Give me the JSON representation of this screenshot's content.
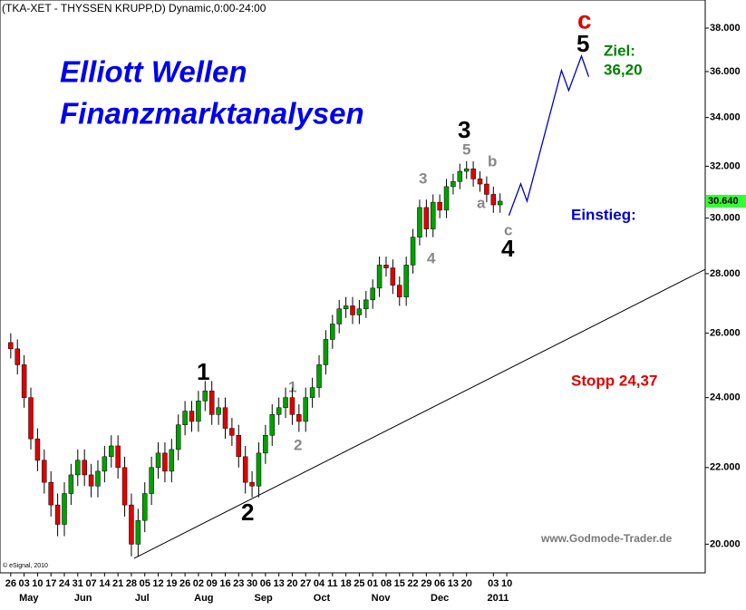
{
  "chart_data": {
    "type": "candlestick",
    "title": "(TKA-XET - THYSSEN KRUPP,D) Dynamic,0:00-24:00",
    "log_scale": true,
    "up_color": "#00a000",
    "down_color": "#e00000",
    "x": [
      0,
      0.5,
      1,
      1.5,
      2,
      2.5,
      3,
      3.5,
      4,
      4.5,
      5,
      5.5,
      6,
      6.5,
      7,
      7.5,
      8,
      8.5,
      9,
      9.5,
      10,
      10.5,
      11,
      11.5,
      12,
      12.5,
      13,
      13.5,
      14,
      14.5,
      15,
      15.5,
      16,
      16.5,
      17,
      17.5,
      18,
      18.5,
      19,
      19.5,
      20,
      20.5,
      21,
      21.5,
      22,
      22.5,
      23,
      23.5,
      24,
      24.5,
      25,
      25.5,
      26,
      26.5,
      27,
      27.5,
      28,
      28.5,
      29,
      29.5,
      30,
      30.5,
      31,
      31.5,
      32,
      32.5,
      33,
      33.5,
      34,
      34.5,
      35,
      35.5,
      36,
      36.5
    ],
    "open": [
      25.7,
      25.5,
      25.0,
      24.0,
      22.8,
      22.2,
      21.6,
      21.0,
      20.5,
      21.3,
      21.8,
      22.2,
      21.8,
      21.5,
      21.9,
      22.3,
      22.6,
      22.0,
      21.0,
      20.0,
      20.6,
      21.3,
      22.0,
      22.4,
      21.9,
      22.5,
      23.2,
      23.6,
      23.3,
      23.9,
      24.2,
      23.5,
      23.7,
      23.1,
      22.9,
      22.3,
      21.6,
      21.5,
      22.4,
      22.9,
      23.5,
      23.7,
      24.0,
      23.5,
      23.3,
      24.0,
      24.3,
      25.0,
      25.8,
      26.3,
      26.8,
      26.9,
      26.6,
      26.8,
      27.1,
      27.5,
      28.3,
      28.2,
      27.6,
      27.2,
      28.3,
      29.3,
      30.4,
      29.6,
      30.6,
      30.3,
      31.2,
      31.4,
      31.8,
      31.9,
      31.5,
      31.3,
      30.9,
      30.5
    ],
    "high": [
      26.0,
      25.8,
      25.3,
      24.3,
      23.1,
      22.5,
      21.9,
      21.3,
      21.6,
      22.1,
      22.5,
      22.5,
      22.1,
      22.2,
      22.6,
      22.9,
      22.9,
      22.3,
      21.3,
      20.9,
      21.6,
      22.3,
      22.7,
      22.7,
      22.8,
      23.5,
      23.9,
      23.9,
      24.2,
      24.5,
      24.5,
      24.0,
      24.0,
      23.4,
      23.2,
      22.6,
      21.9,
      22.7,
      23.2,
      23.8,
      24.0,
      24.3,
      24.3,
      23.8,
      24.3,
      24.6,
      25.3,
      26.1,
      26.6,
      27.1,
      27.2,
      27.2,
      27.1,
      27.4,
      27.8,
      28.6,
      28.6,
      28.5,
      27.9,
      28.6,
      29.6,
      30.7,
      30.7,
      30.9,
      30.9,
      31.5,
      31.7,
      32.1,
      32.2,
      32.2,
      31.8,
      31.6,
      31.2,
      30.94
    ],
    "low": [
      25.2,
      24.7,
      23.7,
      22.5,
      21.9,
      21.3,
      20.7,
      20.2,
      20.2,
      21.0,
      21.5,
      21.5,
      21.2,
      21.2,
      21.6,
      22.0,
      21.7,
      20.7,
      19.7,
      19.7,
      20.3,
      21.0,
      21.7,
      21.6,
      21.6,
      22.2,
      22.9,
      23.0,
      23.0,
      23.6,
      23.2,
      23.2,
      22.8,
      22.6,
      22.0,
      21.3,
      21.2,
      21.2,
      22.1,
      22.6,
      23.2,
      23.4,
      23.2,
      23.0,
      23.0,
      23.7,
      24.0,
      24.7,
      25.5,
      26.0,
      26.5,
      26.3,
      26.3,
      26.5,
      26.8,
      27.2,
      27.9,
      27.3,
      26.9,
      26.9,
      28.0,
      29.0,
      29.3,
      29.3,
      30.0,
      30.0,
      30.9,
      31.1,
      31.5,
      31.2,
      31.0,
      30.6,
      30.2,
      30.2
    ],
    "close": [
      25.5,
      25.0,
      24.0,
      22.8,
      22.2,
      21.6,
      21.0,
      20.5,
      21.3,
      21.8,
      22.2,
      21.8,
      21.5,
      21.9,
      22.3,
      22.6,
      22.0,
      21.0,
      20.0,
      20.6,
      21.3,
      22.0,
      22.4,
      21.9,
      22.5,
      23.2,
      23.6,
      23.3,
      23.9,
      24.2,
      23.5,
      23.7,
      23.1,
      22.9,
      22.3,
      21.6,
      21.5,
      22.4,
      22.9,
      23.5,
      23.7,
      24.0,
      23.5,
      23.3,
      24.0,
      24.3,
      25.0,
      25.8,
      26.3,
      26.8,
      26.9,
      26.6,
      26.8,
      27.1,
      27.5,
      28.3,
      28.2,
      27.6,
      27.2,
      28.3,
      29.3,
      30.4,
      29.6,
      30.6,
      30.3,
      31.2,
      31.4,
      31.8,
      31.9,
      31.5,
      31.3,
      30.9,
      30.5,
      30.64
    ],
    "trendline": {
      "color": "#000000",
      "x": [
        9.2,
        51.8
      ],
      "y": [
        19.65,
        28.15
      ]
    },
    "projection": {
      "color": "#0000cc",
      "x": [
        37.16,
        38.04,
        38.51,
        41.08,
        41.62,
        42.57,
        43.11
      ],
      "y": [
        30.1,
        31.31,
        30.64,
        36.05,
        35.16,
        36.7,
        35.77
      ]
    },
    "last_price": {
      "value": 30.64,
      "label": "30.640"
    },
    "xlim": [
      -0.8,
      51.8
    ],
    "ylim": [
      19.3,
      39.35
    ],
    "yticks": [
      {
        "value": 20,
        "label": "20.000"
      },
      {
        "value": 22,
        "label": "22.000"
      },
      {
        "value": 24,
        "label": "24.000"
      },
      {
        "value": 26,
        "label": "26.000"
      },
      {
        "value": 28,
        "label": "28.000"
      },
      {
        "value": 30,
        "label": "30.000"
      },
      {
        "value": 32,
        "label": "32.000"
      },
      {
        "value": 34,
        "label": "34.000"
      },
      {
        "value": 36,
        "label": "36.000"
      },
      {
        "value": 38,
        "label": "38.000"
      }
    ],
    "xticks": [
      {
        "value": 0,
        "label": "26"
      },
      {
        "value": 1,
        "label": "03"
      },
      {
        "value": 2,
        "label": "10"
      },
      {
        "value": 3,
        "label": "17"
      },
      {
        "value": 4,
        "label": "24"
      },
      {
        "value": 5,
        "label": "31"
      },
      {
        "value": 6,
        "label": "07"
      },
      {
        "value": 7,
        "label": "14"
      },
      {
        "value": 8,
        "label": "21"
      },
      {
        "value": 9,
        "label": "28"
      },
      {
        "value": 10,
        "label": "05"
      },
      {
        "value": 11,
        "label": "12"
      },
      {
        "value": 12,
        "label": "19"
      },
      {
        "value": 13,
        "label": "26"
      },
      {
        "value": 14,
        "label": "02"
      },
      {
        "value": 15,
        "label": "09"
      },
      {
        "value": 16,
        "label": "16"
      },
      {
        "value": 17,
        "label": "23"
      },
      {
        "value": 18,
        "label": "30"
      },
      {
        "value": 19,
        "label": "06"
      },
      {
        "value": 20,
        "label": "13"
      },
      {
        "value": 21,
        "label": "20"
      },
      {
        "value": 22,
        "label": "27"
      },
      {
        "value": 23,
        "label": "04"
      },
      {
        "value": 24,
        "label": "11"
      },
      {
        "value": 25,
        "label": "18"
      },
      {
        "value": 26,
        "label": "25"
      },
      {
        "value": 27,
        "label": "01"
      },
      {
        "value": 28,
        "label": "08"
      },
      {
        "value": 29,
        "label": "15"
      },
      {
        "value": 30,
        "label": "22"
      },
      {
        "value": 31,
        "label": "29"
      },
      {
        "value": 32,
        "label": "06"
      },
      {
        "value": 33,
        "label": "13"
      },
      {
        "value": 34,
        "label": "20"
      },
      {
        "value": 36,
        "label": "03"
      },
      {
        "value": 37,
        "label": "10"
      }
    ],
    "month_ticks": [
      {
        "value": 1.35,
        "label": "May"
      },
      {
        "value": 5.4,
        "label": "Jun"
      },
      {
        "value": 9.8,
        "label": "Jul"
      },
      {
        "value": 14.4,
        "label": "Aug"
      },
      {
        "value": 18.85,
        "label": "Sep"
      },
      {
        "value": 23.2,
        "label": "Oct"
      },
      {
        "value": 27.6,
        "label": "Nov"
      },
      {
        "value": 32,
        "label": "Dec"
      },
      {
        "value": 36.35,
        "label": "2011"
      }
    ],
    "headline": [
      "Elliott Wellen",
      "Finanzmarktanalysen"
    ],
    "waves_major": [
      "1",
      "2",
      "3",
      "4",
      "5"
    ],
    "wave_c_top": "c",
    "waves_minor": [
      "1",
      "2",
      "3",
      "4",
      "5",
      "a",
      "b",
      "c"
    ],
    "target_label": "Ziel:",
    "target_value": "36,20",
    "entry_label": "Einstieg:",
    "stop_label": "Stopp 24,37",
    "source": "www.Godmode-Trader.de",
    "copyright": "© eSignal, 2010"
  }
}
